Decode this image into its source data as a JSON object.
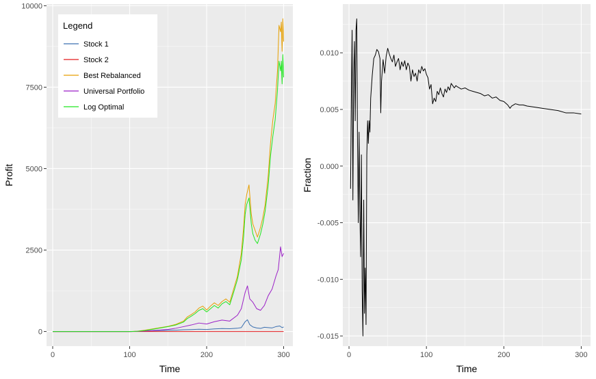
{
  "chart_data": [
    {
      "type": "line",
      "xlabel": "Time",
      "ylabel": "Profit",
      "xlim": [
        -8,
        312
      ],
      "ylim": [
        -450,
        10050
      ],
      "xticks": [
        0,
        100,
        200,
        300
      ],
      "yticks": [
        0,
        2500,
        5000,
        7500,
        10000
      ],
      "grid": true,
      "legend": {
        "title": "Legend",
        "placement": "top-left"
      },
      "series": [
        {
          "name": "Stock 1",
          "color": "#3a6fb0",
          "points": [
            [
              0,
              0
            ],
            [
              100,
              0
            ],
            [
              110,
              5
            ],
            [
              120,
              12
            ],
            [
              130,
              20
            ],
            [
              140,
              30
            ],
            [
              150,
              35
            ],
            [
              160,
              42
            ],
            [
              170,
              55
            ],
            [
              180,
              60
            ],
            [
              190,
              70
            ],
            [
              200,
              62
            ],
            [
              210,
              80
            ],
            [
              220,
              90
            ],
            [
              230,
              85
            ],
            [
              240,
              100
            ],
            [
              245,
              120
            ],
            [
              250,
              300
            ],
            [
              253,
              360
            ],
            [
              256,
              210
            ],
            [
              260,
              140
            ],
            [
              265,
              110
            ],
            [
              270,
              95
            ],
            [
              275,
              130
            ],
            [
              280,
              120
            ],
            [
              285,
              110
            ],
            [
              290,
              150
            ],
            [
              295,
              170
            ],
            [
              298,
              120
            ],
            [
              300,
              140
            ]
          ]
        },
        {
          "name": "Stock 2",
          "color": "#e41a1c",
          "points": [
            [
              0,
              0
            ],
            [
              300,
              0
            ]
          ]
        },
        {
          "name": "Best Rebalanced",
          "color": "#e69f00",
          "points": [
            [
              0,
              0
            ],
            [
              100,
              0
            ],
            [
              110,
              10
            ],
            [
              120,
              40
            ],
            [
              130,
              80
            ],
            [
              140,
              120
            ],
            [
              150,
              160
            ],
            [
              160,
              220
            ],
            [
              170,
              320
            ],
            [
              175,
              450
            ],
            [
              180,
              520
            ],
            [
              185,
              600
            ],
            [
              190,
              720
            ],
            [
              195,
              780
            ],
            [
              200,
              660
            ],
            [
              205,
              780
            ],
            [
              210,
              880
            ],
            [
              215,
              800
            ],
            [
              220,
              920
            ],
            [
              225,
              1000
            ],
            [
              230,
              900
            ],
            [
              235,
              1300
            ],
            [
              240,
              1700
            ],
            [
              245,
              2400
            ],
            [
              248,
              3200
            ],
            [
              250,
              3900
            ],
            [
              252,
              4200
            ],
            [
              255,
              4500
            ],
            [
              258,
              3600
            ],
            [
              260,
              3300
            ],
            [
              263,
              3100
            ],
            [
              266,
              2900
            ],
            [
              270,
              3200
            ],
            [
              273,
              3500
            ],
            [
              276,
              3900
            ],
            [
              280,
              4800
            ],
            [
              283,
              5800
            ],
            [
              286,
              6500
            ],
            [
              289,
              7000
            ],
            [
              292,
              8000
            ],
            [
              294,
              9400
            ],
            [
              296,
              9200
            ],
            [
              297,
              9500
            ],
            [
              298,
              8600
            ],
            [
              299,
              9600
            ],
            [
              300,
              8900
            ]
          ]
        },
        {
          "name": "Universal Portfolio",
          "color": "#9b1fc7",
          "points": [
            [
              0,
              0
            ],
            [
              100,
              0
            ],
            [
              110,
              5
            ],
            [
              120,
              15
            ],
            [
              130,
              30
            ],
            [
              140,
              45
            ],
            [
              150,
              65
            ],
            [
              160,
              100
            ],
            [
              170,
              150
            ],
            [
              180,
              200
            ],
            [
              190,
              260
            ],
            [
              200,
              230
            ],
            [
              210,
              300
            ],
            [
              220,
              350
            ],
            [
              230,
              320
            ],
            [
              240,
              500
            ],
            [
              245,
              700
            ],
            [
              250,
              1200
            ],
            [
              253,
              1400
            ],
            [
              256,
              1000
            ],
            [
              260,
              900
            ],
            [
              265,
              700
            ],
            [
              270,
              650
            ],
            [
              275,
              800
            ],
            [
              280,
              1100
            ],
            [
              285,
              1300
            ],
            [
              290,
              1700
            ],
            [
              293,
              1900
            ],
            [
              296,
              2600
            ],
            [
              298,
              2300
            ],
            [
              300,
              2400
            ]
          ]
        },
        {
          "name": "Log Optimal",
          "color": "#1ee61e",
          "points": [
            [
              0,
              0
            ],
            [
              100,
              0
            ],
            [
              110,
              8
            ],
            [
              120,
              30
            ],
            [
              130,
              70
            ],
            [
              140,
              110
            ],
            [
              150,
              150
            ],
            [
              160,
              200
            ],
            [
              170,
              290
            ],
            [
              175,
              400
            ],
            [
              180,
              470
            ],
            [
              185,
              550
            ],
            [
              190,
              650
            ],
            [
              195,
              700
            ],
            [
              200,
              600
            ],
            [
              205,
              700
            ],
            [
              210,
              800
            ],
            [
              215,
              720
            ],
            [
              220,
              850
            ],
            [
              225,
              920
            ],
            [
              230,
              820
            ],
            [
              235,
              1200
            ],
            [
              240,
              1600
            ],
            [
              245,
              2200
            ],
            [
              248,
              2900
            ],
            [
              250,
              3600
            ],
            [
              252,
              3900
            ],
            [
              255,
              4100
            ],
            [
              258,
              3300
            ],
            [
              260,
              3000
            ],
            [
              263,
              2800
            ],
            [
              266,
              2700
            ],
            [
              270,
              3000
            ],
            [
              273,
              3300
            ],
            [
              276,
              3700
            ],
            [
              280,
              4500
            ],
            [
              283,
              5400
            ],
            [
              286,
              6000
            ],
            [
              289,
              6500
            ],
            [
              292,
              7400
            ],
            [
              294,
              8300
            ],
            [
              296,
              8000
            ],
            [
              297,
              8300
            ],
            [
              298,
              7600
            ],
            [
              299,
              8500
            ],
            [
              300,
              7800
            ]
          ]
        }
      ]
    },
    {
      "type": "line",
      "xlabel": "Time",
      "ylabel": "Fraction",
      "xlim": [
        -8,
        312
      ],
      "ylim": [
        -0.0159,
        0.0143
      ],
      "xticks": [
        0,
        100,
        200,
        300
      ],
      "yticks": [
        -0.015,
        -0.01,
        -0.005,
        0.0,
        0.005,
        0.01
      ],
      "ytick_labels": [
        "-0.015",
        "-0.010",
        "-0.005",
        "0.000",
        "0.005",
        "0.010"
      ],
      "grid": true,
      "series": [
        {
          "color": "#000000",
          "points": [
            [
              2,
              -0.002
            ],
            [
              3,
              0.006
            ],
            [
              4,
              0.012
            ],
            [
              5,
              -0.003
            ],
            [
              6,
              0.008
            ],
            [
              7,
              0.011
            ],
            [
              8,
              0.004
            ],
            [
              9,
              0.012
            ],
            [
              10,
              0.013
            ],
            [
              11,
              0.002
            ],
            [
              12,
              -0.005
            ],
            [
              13,
              0.003
            ],
            [
              14,
              -0.004
            ],
            [
              15,
              -0.008
            ],
            [
              16,
              0.001
            ],
            [
              17,
              -0.011
            ],
            [
              18,
              -0.015
            ],
            [
              19,
              -0.003
            ],
            [
              20,
              -0.013
            ],
            [
              21,
              -0.009
            ],
            [
              22,
              -0.014
            ],
            [
              23,
              0.001
            ],
            [
              24,
              0.004
            ],
            [
              25,
              0.002
            ],
            [
              26,
              0.004
            ],
            [
              27,
              0.003
            ],
            [
              28,
              0.006
            ],
            [
              30,
              0.008
            ],
            [
              32,
              0.0095
            ],
            [
              34,
              0.0098
            ],
            [
              36,
              0.0103
            ],
            [
              38,
              0.0101
            ],
            [
              40,
              0.0095
            ],
            [
              41,
              0.0047
            ],
            [
              42,
              0.0075
            ],
            [
              44,
              0.0094
            ],
            [
              46,
              0.0082
            ],
            [
              48,
              0.0097
            ],
            [
              50,
              0.0104
            ],
            [
              52,
              0.0099
            ],
            [
              54,
              0.0095
            ],
            [
              56,
              0.0092
            ],
            [
              58,
              0.0098
            ],
            [
              60,
              0.0088
            ],
            [
              62,
              0.0092
            ],
            [
              64,
              0.0095
            ],
            [
              66,
              0.0085
            ],
            [
              68,
              0.0092
            ],
            [
              70,
              0.0088
            ],
            [
              72,
              0.0093
            ],
            [
              74,
              0.0085
            ],
            [
              76,
              0.0091
            ],
            [
              78,
              0.0088
            ],
            [
              80,
              0.0075
            ],
            [
              82,
              0.0085
            ],
            [
              84,
              0.0079
            ],
            [
              86,
              0.0082
            ],
            [
              88,
              0.0075
            ],
            [
              90,
              0.0085
            ],
            [
              92,
              0.0082
            ],
            [
              94,
              0.0088
            ],
            [
              96,
              0.0084
            ],
            [
              98,
              0.0086
            ],
            [
              100,
              0.0081
            ],
            [
              102,
              0.0078
            ],
            [
              104,
              0.0068
            ],
            [
              106,
              0.0072
            ],
            [
              108,
              0.0055
            ],
            [
              110,
              0.006
            ],
            [
              112,
              0.0057
            ],
            [
              114,
              0.0066
            ],
            [
              116,
              0.0063
            ],
            [
              118,
              0.0069
            ],
            [
              120,
              0.0064
            ],
            [
              122,
              0.0061
            ],
            [
              124,
              0.0068
            ],
            [
              126,
              0.0065
            ],
            [
              128,
              0.007
            ],
            [
              130,
              0.0067
            ],
            [
              132,
              0.0073
            ],
            [
              134,
              0.0071
            ],
            [
              136,
              0.0069
            ],
            [
              138,
              0.0071
            ],
            [
              140,
              0.007
            ],
            [
              145,
              0.0068
            ],
            [
              150,
              0.0069
            ],
            [
              155,
              0.0067
            ],
            [
              160,
              0.0066
            ],
            [
              165,
              0.0065
            ],
            [
              170,
              0.0064
            ],
            [
              175,
              0.0062
            ],
            [
              180,
              0.0063
            ],
            [
              185,
              0.006
            ],
            [
              190,
              0.0061
            ],
            [
              195,
              0.0058
            ],
            [
              200,
              0.0057
            ],
            [
              205,
              0.0054
            ],
            [
              208,
              0.0051
            ],
            [
              210,
              0.0053
            ],
            [
              215,
              0.0055
            ],
            [
              220,
              0.0054
            ],
            [
              225,
              0.0054
            ],
            [
              230,
              0.0053
            ],
            [
              240,
              0.0052
            ],
            [
              250,
              0.0051
            ],
            [
              260,
              0.005
            ],
            [
              270,
              0.0049
            ],
            [
              280,
              0.0047
            ],
            [
              290,
              0.0047
            ],
            [
              300,
              0.0046
            ]
          ]
        }
      ]
    }
  ]
}
